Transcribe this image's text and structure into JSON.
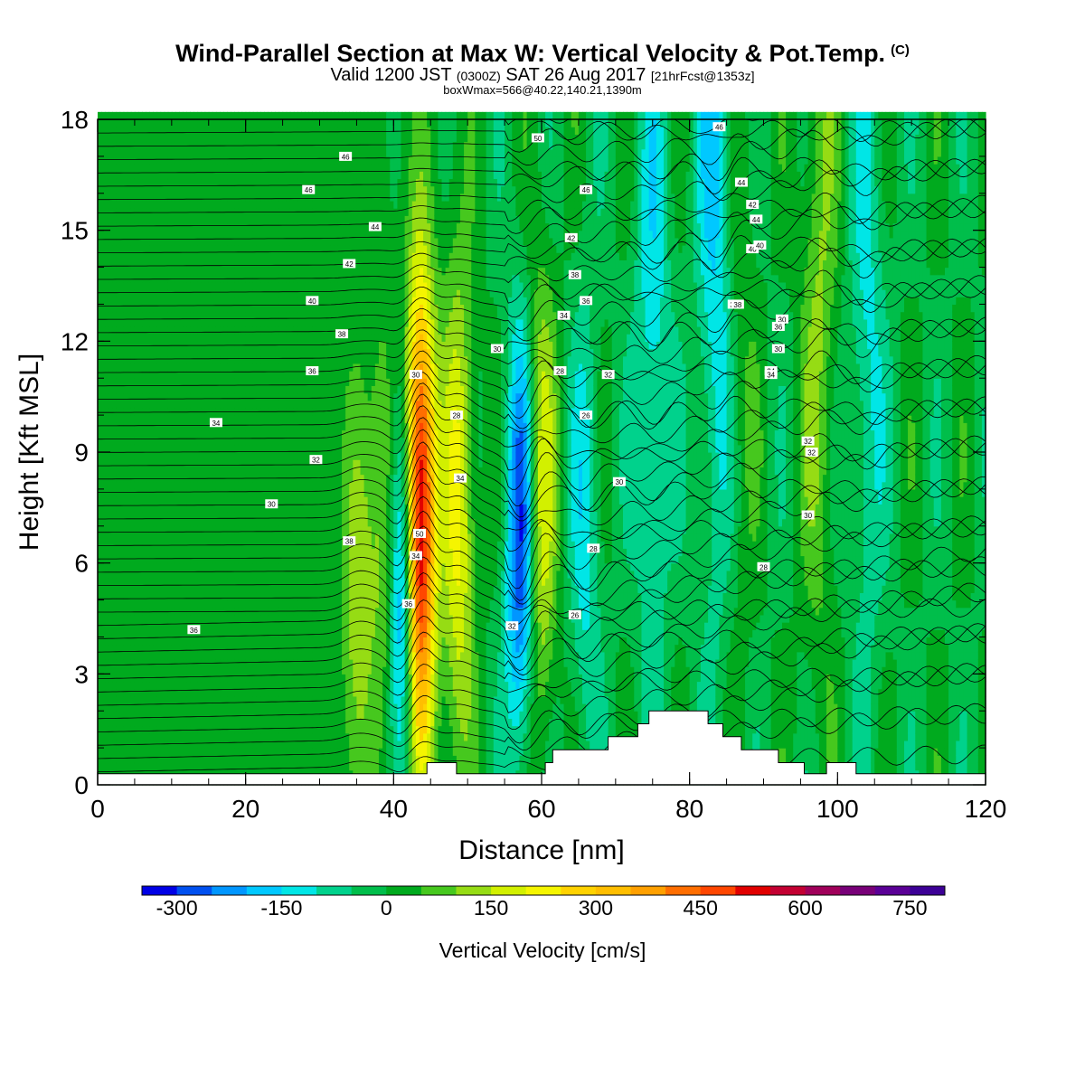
{
  "header": {
    "title": "Wind-Parallel Section at Max W: Vertical Velocity & Pot.Temp.",
    "copyright": "(C)",
    "valid_prefix": "Valid 1200 JST",
    "valid_utc": "(0300Z)",
    "valid_date": "SAT 26 Aug 2017",
    "forecast": "[21hrFcst@1353z]",
    "box_info": "boxWmax=566@40.22,140.21,1390m"
  },
  "chart_data": {
    "type": "heatmap",
    "xlabel": "Distance [nm]",
    "ylabel": "Height [Kft MSL]",
    "xlim": [
      0,
      120
    ],
    "ylim": [
      0,
      18
    ],
    "x_ticks": [
      "0",
      "20",
      "40",
      "60",
      "80",
      "100",
      "120"
    ],
    "y_ticks": [
      "0",
      "3",
      "6",
      "9",
      "12",
      "15",
      "18"
    ],
    "colorbar": {
      "title": "Vertical Velocity [cm/s]",
      "range": [
        -350,
        800
      ],
      "step": 50,
      "tick_labels": [
        "-300",
        "-150",
        "0",
        "150",
        "300",
        "450",
        "600",
        "750"
      ],
      "colors": [
        "#0000e6",
        "#0050f0",
        "#0096ff",
        "#00c8ff",
        "#00e6e6",
        "#00d28c",
        "#00be4b",
        "#00aa1e",
        "#46c81e",
        "#96dc14",
        "#d2f000",
        "#f5f500",
        "#ffd200",
        "#ffbe00",
        "#ffa000",
        "#ff6e00",
        "#ff4600",
        "#e10000",
        "#c30032",
        "#a0005a",
        "#780078",
        "#5a0096",
        "#3c0096"
      ]
    },
    "background_w": 20,
    "updrafts": [
      {
        "x": 43.5,
        "z": 7.2,
        "w": 620
      },
      {
        "x": 48.8,
        "z": 7.5,
        "w": 220
      },
      {
        "x": 59.8,
        "z": 7.5,
        "w": 200
      },
      {
        "x": 39.0,
        "z": 6.5,
        "w": 130
      },
      {
        "x": 35.2,
        "z": 5.5,
        "w": 130
      },
      {
        "x": 86.0,
        "z": 14.0,
        "w": 110
      },
      {
        "x": 97.5,
        "z": 13.0,
        "w": 110
      }
    ],
    "downdrafts": [
      {
        "x": 41.2,
        "z": 5.8,
        "w": -340
      },
      {
        "x": 57.2,
        "z": 6.5,
        "w": -300
      },
      {
        "x": 84.0,
        "z": 16.5,
        "w": -200
      },
      {
        "x": 75.0,
        "z": 12.0,
        "w": -130
      },
      {
        "x": 66.0,
        "z": 7.0,
        "w": -120
      },
      {
        "x": 104.0,
        "z": 12.0,
        "w": -110
      }
    ],
    "theta_labels": [
      "46",
      "46",
      "44",
      "42",
      "40",
      "38",
      "36",
      "34",
      "32",
      "30",
      "36",
      "50",
      "46",
      "44",
      "42",
      "40",
      "38",
      "36",
      "34",
      "34",
      "32",
      "30",
      "30",
      "30",
      "28",
      "26",
      "34",
      "32",
      "30",
      "34",
      "32",
      "30",
      "28",
      "28",
      "26",
      "38",
      "36",
      "34",
      "32",
      "30",
      "28",
      "50",
      "46",
      "44",
      "42",
      "40",
      "38",
      "36",
      "34"
    ],
    "terrain": [
      {
        "x": 0,
        "z": 0.3
      },
      {
        "x": 44.5,
        "z": 0.3
      },
      {
        "x": 44.5,
        "z": 0.6
      },
      {
        "x": 48.5,
        "z": 0.6
      },
      {
        "x": 48.5,
        "z": 0.3
      },
      {
        "x": 60.5,
        "z": 0.3
      },
      {
        "x": 60.5,
        "z": 0.6
      },
      {
        "x": 61.5,
        "z": 0.6
      },
      {
        "x": 61.5,
        "z": 0.95
      },
      {
        "x": 69,
        "z": 0.95
      },
      {
        "x": 69,
        "z": 1.3
      },
      {
        "x": 73,
        "z": 1.3
      },
      {
        "x": 73,
        "z": 1.65
      },
      {
        "x": 74.5,
        "z": 1.65
      },
      {
        "x": 74.5,
        "z": 2.0
      },
      {
        "x": 82.5,
        "z": 2.0
      },
      {
        "x": 82.5,
        "z": 1.65
      },
      {
        "x": 84.5,
        "z": 1.65
      },
      {
        "x": 84.5,
        "z": 1.3
      },
      {
        "x": 87,
        "z": 1.3
      },
      {
        "x": 87,
        "z": 0.95
      },
      {
        "x": 92,
        "z": 0.95
      },
      {
        "x": 92,
        "z": 0.6
      },
      {
        "x": 95.5,
        "z": 0.6
      },
      {
        "x": 95.5,
        "z": 0.3
      },
      {
        "x": 98.5,
        "z": 0.3
      },
      {
        "x": 98.5,
        "z": 0.6
      },
      {
        "x": 102.5,
        "z": 0.6
      },
      {
        "x": 102.5,
        "z": 0.3
      },
      {
        "x": 120,
        "z": 0.3
      }
    ]
  }
}
